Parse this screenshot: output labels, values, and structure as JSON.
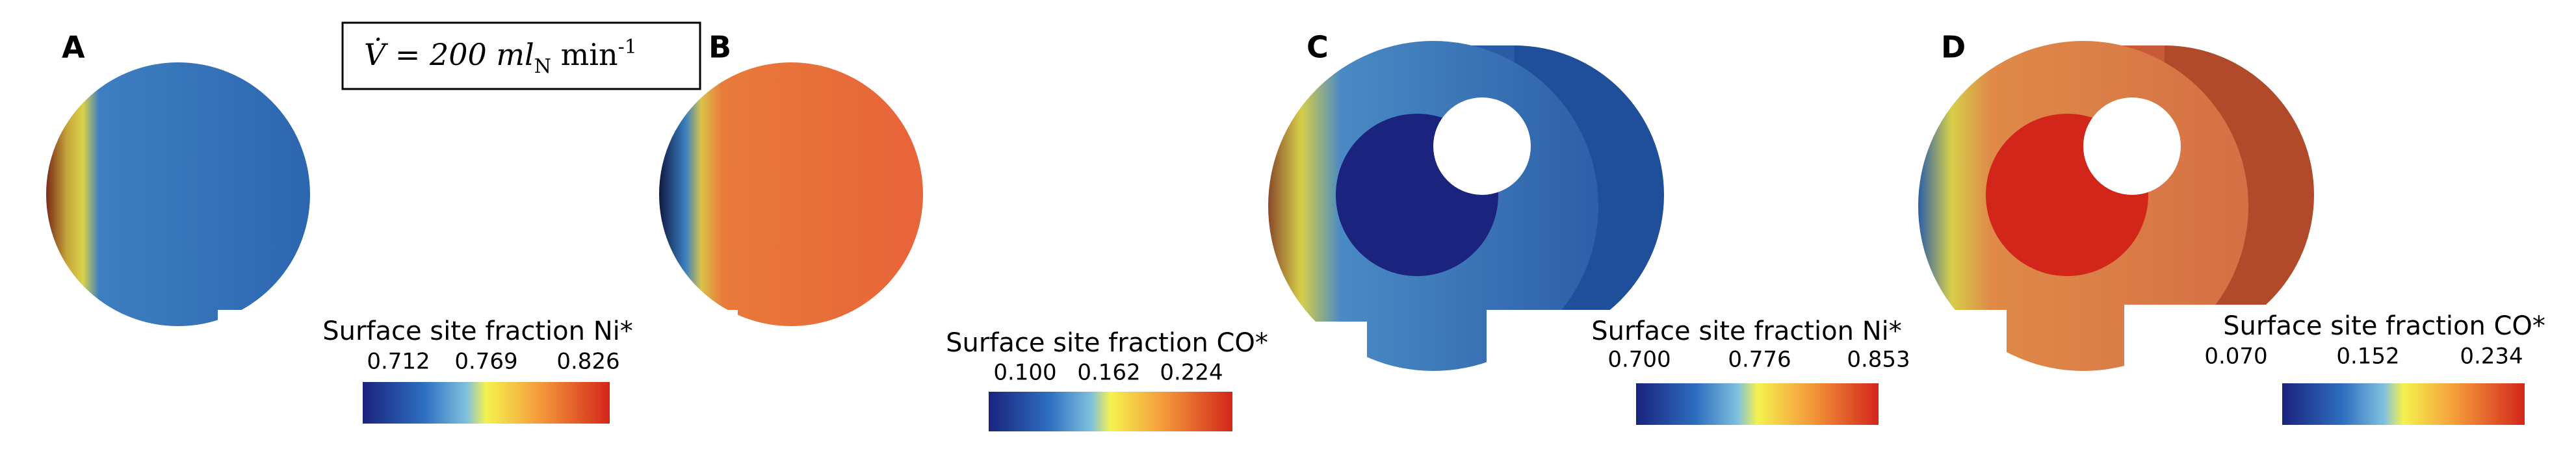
{
  "box": {
    "parts": [
      "V̇ = 200 ml",
      "N",
      " min",
      "-1"
    ]
  },
  "panels": [
    {
      "label": "A",
      "colorbar": {
        "title": "Surface site fraction Ni*",
        "ticks": [
          "0.712",
          "0.769",
          "0.826"
        ]
      }
    },
    {
      "label": "B",
      "colorbar": {
        "title": "Surface site fraction CO*",
        "ticks": [
          "0.100",
          "0.162",
          "0.224"
        ]
      }
    },
    {
      "label": "C",
      "colorbar": {
        "title": "Surface site fraction Ni*",
        "ticks": [
          "0.700",
          "0.776",
          "0.853"
        ]
      }
    },
    {
      "label": "D",
      "colorbar": {
        "title": "Surface site fraction CO*",
        "ticks": [
          "0.070",
          "0.152",
          "0.234"
        ]
      }
    }
  ]
}
